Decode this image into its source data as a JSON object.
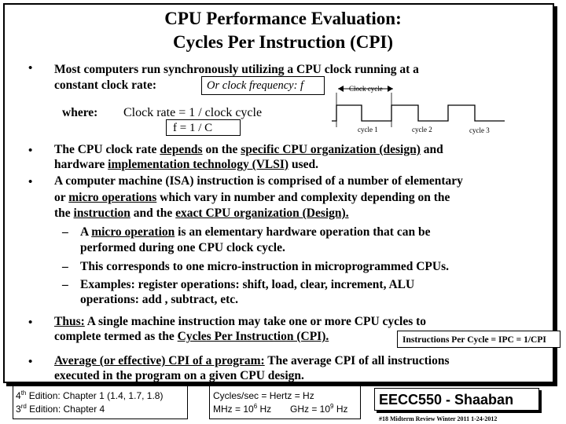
{
  "title": {
    "line1": "CPU Performance Evaluation:",
    "line2": "Cycles Per Instruction (CPI)"
  },
  "bullet1": {
    "line1": "Most computers run synchronously utilizing a CPU clock running at   a",
    "line2": "constant clock rate:",
    "box": "Or clock frequency: f",
    "where": "where:",
    "clock_rate": "Clock rate  =  1 / clock cycle",
    "formula": "f   =  1 / C"
  },
  "clock_diagram": {
    "cycle_label": "Clock cycle",
    "cycles": [
      "cycle 1",
      "cycle 2",
      "cycle 3"
    ]
  },
  "bullet2": {
    "pre": "The CPU clock rate ",
    "depends": "depends",
    "mid1": " on the ",
    "specific": "specific CPU organization (design)",
    "mid2": " and",
    "line2_pre": "hardware ",
    "implementation": "implementation technology (VLSI)",
    "line2_post": " used."
  },
  "bullet3": {
    "line1": "A computer machine (ISA) instruction is comprised of a number of elementary",
    "line2_pre": "or ",
    "micro": "micro operations",
    "line2_post": " which vary in number and complexity depending on the",
    "line3_pre": "the ",
    "instruction": "instruction",
    "line3_mid": " and the ",
    "exact": "exact CPU organization (Design).",
    "sub1_line1_pre": "A ",
    "sub1_micro": "micro operation",
    "sub1_line1_post": " is an elementary hardware operation that can be",
    "sub1_line2": "performed during one CPU clock cycle.",
    "sub2": "This corresponds to one micro-instruction in microprogrammed CPUs.",
    "sub3_line1": "Examples:  register operations: shift, load, clear, increment, ALU",
    "sub3_line2": "operations: add , subtract, etc.",
    "dash": "–"
  },
  "bullet4": {
    "thus": "Thus:",
    "line1": "  A single machine instruction may take one or more CPU cycles to",
    "line2_pre": "complete termed as the ",
    "cpi": "Cycles Per Instruction (CPI).",
    "ipc_box": "Instructions Per Cycle = IPC = 1/CPI"
  },
  "bullet5": {
    "avg": "Average (or effective) CPI of a program:",
    "line1_post": "  The average CPI of all instructions",
    "line2": "executed in the program on a given CPU design."
  },
  "footer": {
    "edition4_pre": "4",
    "edition4_sup": "th",
    "edition4_post": " Edition: Chapter 1 (1.4,  1.7, 1.8)",
    "edition3_pre": "3",
    "edition3_sup": "rd",
    "edition3_post": " Edition: Chapter 4",
    "hertz_line1": "Cycles/sec = Hertz = Hz",
    "hertz_mhz": "MHz = 10",
    "hertz_mhz_exp": "6",
    "hertz_mhz_unit": " Hz",
    "hertz_ghz": "GHz = 10",
    "hertz_ghz_exp": "9",
    "hertz_ghz_unit": " Hz",
    "course": "EECC550 - Shaaban",
    "slide_info": "#18   Midterm Review   Winter 2011  1-24-2012"
  },
  "bullet_glyph": "•"
}
